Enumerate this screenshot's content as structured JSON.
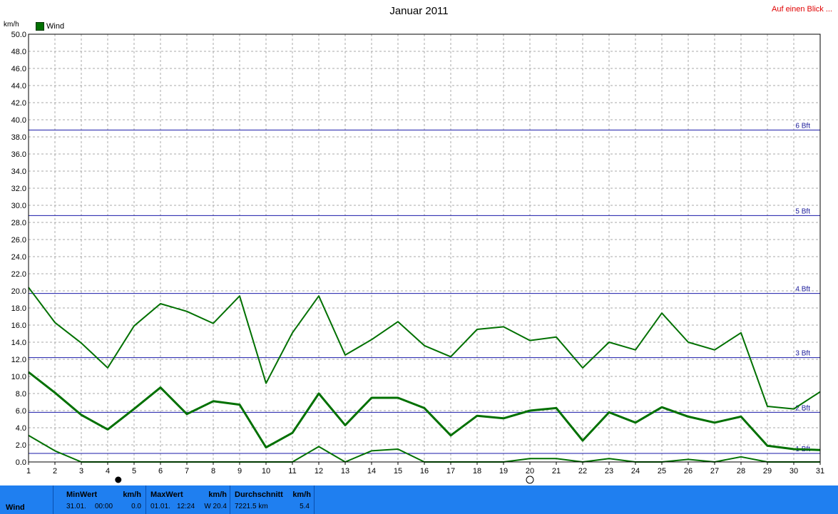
{
  "title": "Januar 2011",
  "link_label": "Auf einen Blick ...",
  "unit_label": "km/h",
  "legend": {
    "label": "Wind",
    "color": "#007000"
  },
  "chart_data": {
    "type": "line",
    "title": "Januar 2011",
    "ylabel": "km/h",
    "xlim": [
      1,
      31
    ],
    "ylim": [
      0,
      50
    ],
    "grid": true,
    "legend_position": "top-left",
    "x": [
      1,
      2,
      3,
      4,
      5,
      6,
      7,
      8,
      9,
      10,
      11,
      12,
      13,
      14,
      15,
      16,
      17,
      18,
      19,
      20,
      21,
      22,
      23,
      24,
      25,
      26,
      27,
      28,
      29,
      30,
      31
    ],
    "x_tick_labels": [
      "1",
      "2",
      "3",
      "4",
      "5",
      "6",
      "7",
      "8",
      "9",
      "10",
      "11",
      "12",
      "13",
      "14",
      "15",
      "16",
      "17",
      "18",
      "19",
      "20",
      "21",
      "22",
      "23",
      "24",
      "25",
      "26",
      "27",
      "28",
      "29",
      "30",
      "31"
    ],
    "y_tick_labels": [
      "0.0",
      "2.0",
      "4.0",
      "6.0",
      "8.0",
      "10.0",
      "12.0",
      "14.0",
      "16.0",
      "18.0",
      "20.0",
      "22.0",
      "24.0",
      "26.0",
      "28.0",
      "30.0",
      "32.0",
      "34.0",
      "36.0",
      "38.0",
      "40.0",
      "42.0",
      "44.0",
      "46.0",
      "48.0",
      "50.0"
    ],
    "y_ticks": [
      0,
      2,
      4,
      6,
      8,
      10,
      12,
      14,
      16,
      18,
      20,
      22,
      24,
      26,
      28,
      30,
      32,
      34,
      36,
      38,
      40,
      42,
      44,
      46,
      48,
      50
    ],
    "reference_lines": [
      {
        "label": "1 Bft",
        "value": 1.0
      },
      {
        "label": "2 Bft",
        "value": 5.8
      },
      {
        "label": "3 Bft",
        "value": 12.2
      },
      {
        "label": "4 Bft",
        "value": 19.7
      },
      {
        "label": "5 Bft",
        "value": 28.8
      },
      {
        "label": "6 Bft",
        "value": 38.8
      }
    ],
    "series": [
      {
        "role": "max",
        "width": 2,
        "values": [
          20.4,
          16.3,
          13.9,
          11.0,
          15.9,
          18.5,
          17.6,
          16.2,
          19.4,
          9.2,
          15.1,
          19.4,
          12.5,
          14.3,
          16.4,
          13.6,
          12.3,
          15.5,
          15.8,
          14.2,
          14.6,
          11.0,
          14.0,
          13.1,
          17.4,
          14.0,
          13.1,
          15.1,
          6.5,
          6.2,
          8.2
        ]
      },
      {
        "role": "average",
        "width": 3,
        "values": [
          10.5,
          8.1,
          5.5,
          3.8,
          6.2,
          8.7,
          5.6,
          7.1,
          6.7,
          1.7,
          3.4,
          8.0,
          4.3,
          7.5,
          7.5,
          6.3,
          3.1,
          5.4,
          5.1,
          6.0,
          6.3,
          2.5,
          5.8,
          4.6,
          6.4,
          5.3,
          4.6,
          5.3,
          1.9,
          1.5,
          1.4
        ]
      },
      {
        "role": "min",
        "width": 2,
        "values": [
          3.1,
          1.3,
          0.0,
          0.0,
          0.0,
          0.0,
          0.0,
          0.0,
          0.0,
          0.0,
          0.0,
          1.8,
          0.0,
          1.3,
          1.5,
          0.0,
          0.0,
          0.0,
          0.0,
          0.4,
          0.4,
          0.0,
          0.4,
          0.0,
          0.0,
          0.3,
          0.0,
          0.6,
          0.0,
          0.0,
          0.0
        ]
      }
    ],
    "markers": [
      {
        "x": 4.4,
        "type": "filled-circle"
      },
      {
        "x": 20.0,
        "type": "open-circle"
      }
    ]
  },
  "footer": {
    "series_name": "Wind",
    "min": {
      "header": "MinWert",
      "unit": "km/h",
      "date": "31.01.",
      "time": "00:00",
      "value": "0.0"
    },
    "max": {
      "header": "MaxWert",
      "unit": "km/h",
      "date": "01.01.",
      "time": "12:24",
      "value": "W 20.4"
    },
    "avg": {
      "header": "Durchschnitt",
      "unit": "km/h",
      "total": "7221.5 km",
      "value": "5.4"
    }
  }
}
